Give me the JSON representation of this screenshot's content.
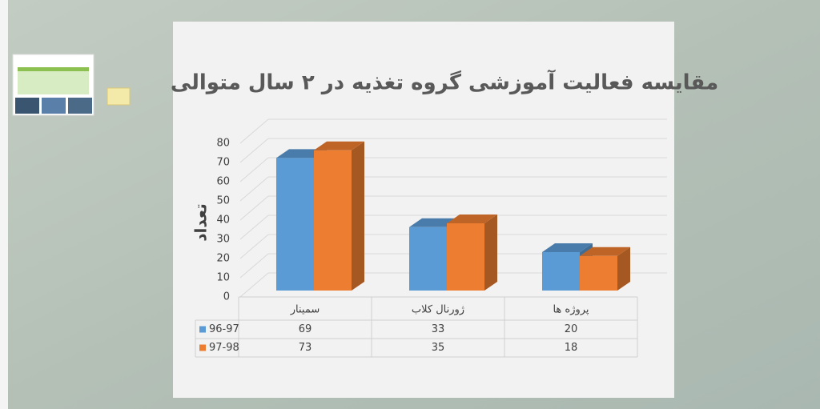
{
  "chart_data": {
    "type": "bar",
    "title": "مقایسه فعالیت آموزشی گروه تغذیه در ۲ سال متوالی",
    "y_label": "تعداد",
    "categories": [
      "سمینار",
      "ژورنال کلاب",
      "پروژه ها"
    ],
    "series": [
      {
        "name": "96-97",
        "color": "#5b9bd5",
        "values": [
          69,
          33,
          20
        ]
      },
      {
        "name": "97-98",
        "color": "#ed7d31",
        "values": [
          73,
          35,
          18
        ]
      }
    ],
    "ylim": [
      0,
      80
    ],
    "yticks": [
      0,
      10,
      20,
      30,
      40,
      50,
      60,
      70,
      80
    ],
    "grid": true
  }
}
